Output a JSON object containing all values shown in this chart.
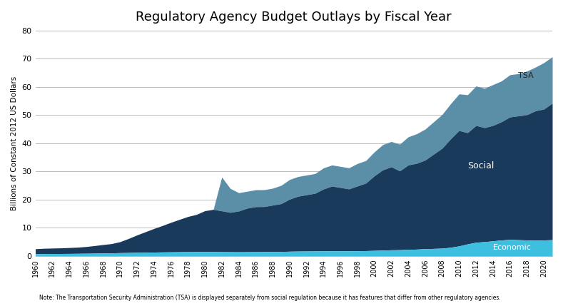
{
  "title": "Regulatory Agency Budget Outlays by Fiscal Year",
  "ylabel": "Billions of Constant 2012 US Dollars",
  "note": "Note: The Transportation Security Administration (TSA) is displayed separately from social regulation because it has features that differ from other regulatory agencies.",
  "background_color": "#ffffff",
  "ylim": [
    0,
    80
  ],
  "yticks": [
    0,
    10,
    20,
    30,
    40,
    50,
    60,
    70,
    80
  ],
  "years": [
    1960,
    1961,
    1962,
    1963,
    1964,
    1965,
    1966,
    1967,
    1968,
    1969,
    1970,
    1971,
    1972,
    1973,
    1974,
    1975,
    1976,
    1977,
    1978,
    1979,
    1980,
    1981,
    1982,
    1983,
    1984,
    1985,
    1986,
    1987,
    1988,
    1989,
    1990,
    1991,
    1992,
    1993,
    1994,
    1995,
    1996,
    1997,
    1998,
    1999,
    2000,
    2001,
    2002,
    2003,
    2004,
    2005,
    2006,
    2007,
    2008,
    2009,
    2010,
    2011,
    2012,
    2013,
    2014,
    2015,
    2016,
    2017,
    2018,
    2019,
    2020,
    2021
  ],
  "economic": [
    0.7,
    0.75,
    0.78,
    0.8,
    0.82,
    0.85,
    0.88,
    0.92,
    0.98,
    1.02,
    1.1,
    1.15,
    1.2,
    1.25,
    1.3,
    1.35,
    1.38,
    1.42,
    1.45,
    1.48,
    1.5,
    1.48,
    1.45,
    1.42,
    1.4,
    1.42,
    1.45,
    1.48,
    1.5,
    1.52,
    1.6,
    1.65,
    1.68,
    1.7,
    1.72,
    1.75,
    1.75,
    1.75,
    1.78,
    1.82,
    1.9,
    2.0,
    2.1,
    2.15,
    2.25,
    2.35,
    2.5,
    2.6,
    2.7,
    3.0,
    3.5,
    4.2,
    4.8,
    5.0,
    5.3,
    5.6,
    5.8,
    5.7,
    5.6,
    5.5,
    5.6,
    5.7
  ],
  "social": [
    1.8,
    1.9,
    1.95,
    2.0,
    2.1,
    2.2,
    2.4,
    2.7,
    3.0,
    3.3,
    3.9,
    5.0,
    6.2,
    7.3,
    8.4,
    9.4,
    10.5,
    11.5,
    12.5,
    13.2,
    14.5,
    15.0,
    14.5,
    14.0,
    14.5,
    15.5,
    16.0,
    16.0,
    16.5,
    17.0,
    18.5,
    19.5,
    20.0,
    20.5,
    22.0,
    23.0,
    22.5,
    22.0,
    23.0,
    24.0,
    26.5,
    28.5,
    29.5,
    28.0,
    30.0,
    30.5,
    31.5,
    33.5,
    35.5,
    38.5,
    41.0,
    39.5,
    41.5,
    40.5,
    41.0,
    42.0,
    43.5,
    44.0,
    44.5,
    46.0,
    46.5,
    48.5
  ],
  "tsa": [
    0,
    0,
    0,
    0,
    0,
    0,
    0,
    0,
    0,
    0,
    0,
    0,
    0,
    0,
    0,
    0,
    0,
    0,
    0,
    0,
    0,
    0,
    12.0,
    8.5,
    6.5,
    6.0,
    6.0,
    6.0,
    6.0,
    6.5,
    7.0,
    7.0,
    7.0,
    7.0,
    7.5,
    7.5,
    7.5,
    7.5,
    8.0,
    8.0,
    8.5,
    9.0,
    9.0,
    9.5,
    10.0,
    10.5,
    11.0,
    11.5,
    12.0,
    12.5,
    13.0,
    13.5,
    14.0,
    14.0,
    14.5,
    14.5,
    15.0,
    15.0,
    15.5,
    15.5,
    16.5,
    16.5
  ],
  "economic_color": "#3dbfdf",
  "social_color": "#1a3a5c",
  "tsa_color": "#5b8fa8",
  "label_social": "Social",
  "label_tsa": "TSA",
  "title_fontsize": 13,
  "axis_fontsize": 7.5,
  "tick_fontsize": 8,
  "note_fontsize": 5.5
}
